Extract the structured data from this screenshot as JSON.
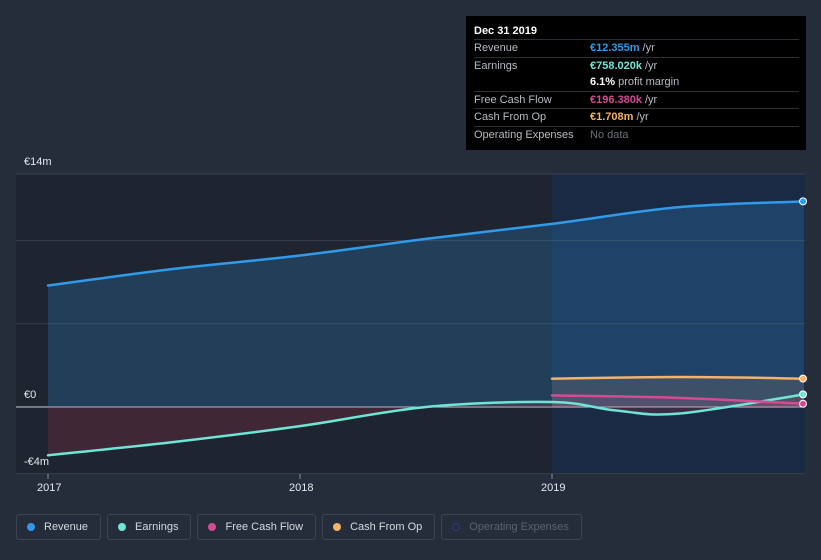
{
  "tooltip": {
    "date": "Dec 31 2019",
    "rows": [
      {
        "label": "Revenue",
        "value": "€12.355m",
        "unit": "/yr",
        "color": "#2f9bea"
      },
      {
        "label": "Earnings",
        "value": "€758.020k",
        "unit": "/yr",
        "color": "#6ee6d6"
      },
      {
        "label": "",
        "value": "6.1%",
        "unit": "profit margin",
        "color": "#ffffff"
      },
      {
        "label": "Free Cash Flow",
        "value": "€196.380k",
        "unit": "/yr",
        "color": "#d44a93"
      },
      {
        "label": "Cash From Op",
        "value": "€1.708m",
        "unit": "/yr",
        "color": "#f2b36a"
      },
      {
        "label": "Operating Expenses",
        "value": "No data",
        "unit": "",
        "color": "#6b717c"
      }
    ]
  },
  "legend": [
    {
      "label": "Revenue",
      "color": "#2f9bea",
      "enabled": true
    },
    {
      "label": "Earnings",
      "color": "#6ee6d6",
      "enabled": true
    },
    {
      "label": "Free Cash Flow",
      "color": "#d44a93",
      "enabled": true
    },
    {
      "label": "Cash From Op",
      "color": "#f2b36a",
      "enabled": true
    },
    {
      "label": "Operating Expenses",
      "color": "#2e3a8c",
      "enabled": false
    }
  ],
  "chart_data": {
    "type": "area",
    "y_tick_labels": [
      "€14m",
      "€0",
      "-€4m"
    ],
    "x_tick_labels": [
      "2017",
      "2018",
      "2019"
    ],
    "ylim": [
      -4,
      14
    ],
    "xlim": [
      2017,
      2020
    ],
    "grid": true,
    "legend_position": "bottom",
    "highlight_region": [
      2019,
      2020
    ],
    "series": [
      {
        "name": "Revenue",
        "color": "#2f9bea",
        "x": [
          2017,
          2017.5,
          2018,
          2018.5,
          2019,
          2019.5,
          2020
        ],
        "values": [
          7.3,
          8.3,
          9.1,
          10.1,
          11.0,
          12.0,
          12.355
        ]
      },
      {
        "name": "Earnings",
        "color": "#6ee6d6",
        "x": [
          2017,
          2017.5,
          2018,
          2018.5,
          2019,
          2019.25,
          2019.5,
          2020
        ],
        "values": [
          -2.9,
          -2.1,
          -1.15,
          0.0,
          0.3,
          -0.2,
          -0.4,
          0.758
        ]
      },
      {
        "name": "Free Cash Flow",
        "color": "#d44a93",
        "x": [
          2019,
          2019.5,
          2020
        ],
        "values": [
          0.7,
          0.55,
          0.196
        ]
      },
      {
        "name": "Cash From Op",
        "color": "#f2b36a",
        "x": [
          2019,
          2019.5,
          2020
        ],
        "values": [
          1.7,
          1.8,
          1.708
        ]
      }
    ]
  }
}
